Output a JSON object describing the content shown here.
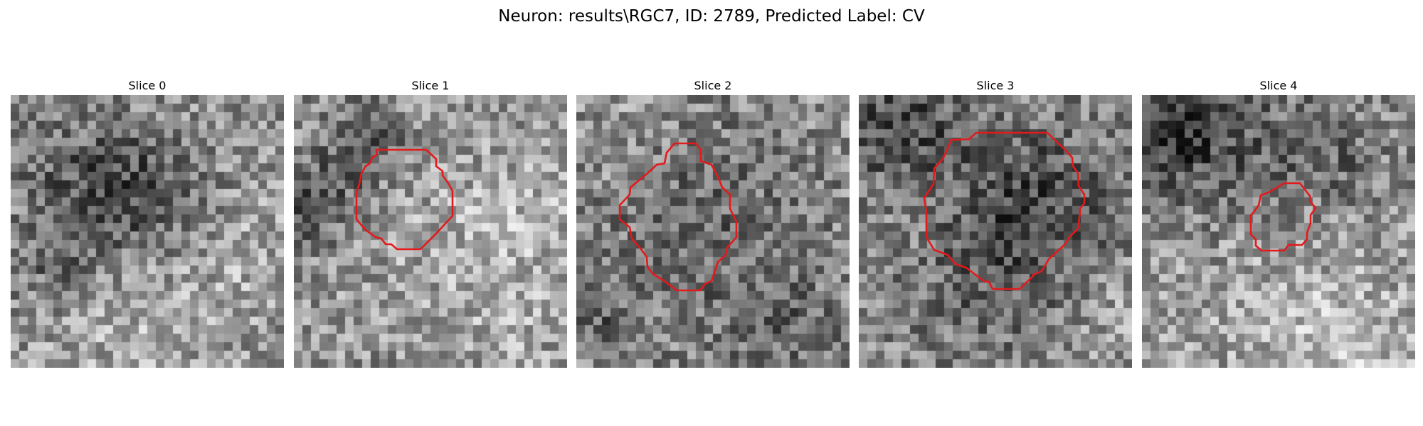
{
  "figure": {
    "title": "Neuron: results\\RGC7, ID: 2789, Predicted Label: CV",
    "contour_color": "#e31a1c"
  },
  "panels": [
    {
      "title": "Slice 0",
      "has_contour": false
    },
    {
      "title": "Slice 1",
      "has_contour": true
    },
    {
      "title": "Slice 2",
      "has_contour": true
    },
    {
      "title": "Slice 3",
      "has_contour": true
    },
    {
      "title": "Slice 4",
      "has_contour": true
    }
  ]
}
